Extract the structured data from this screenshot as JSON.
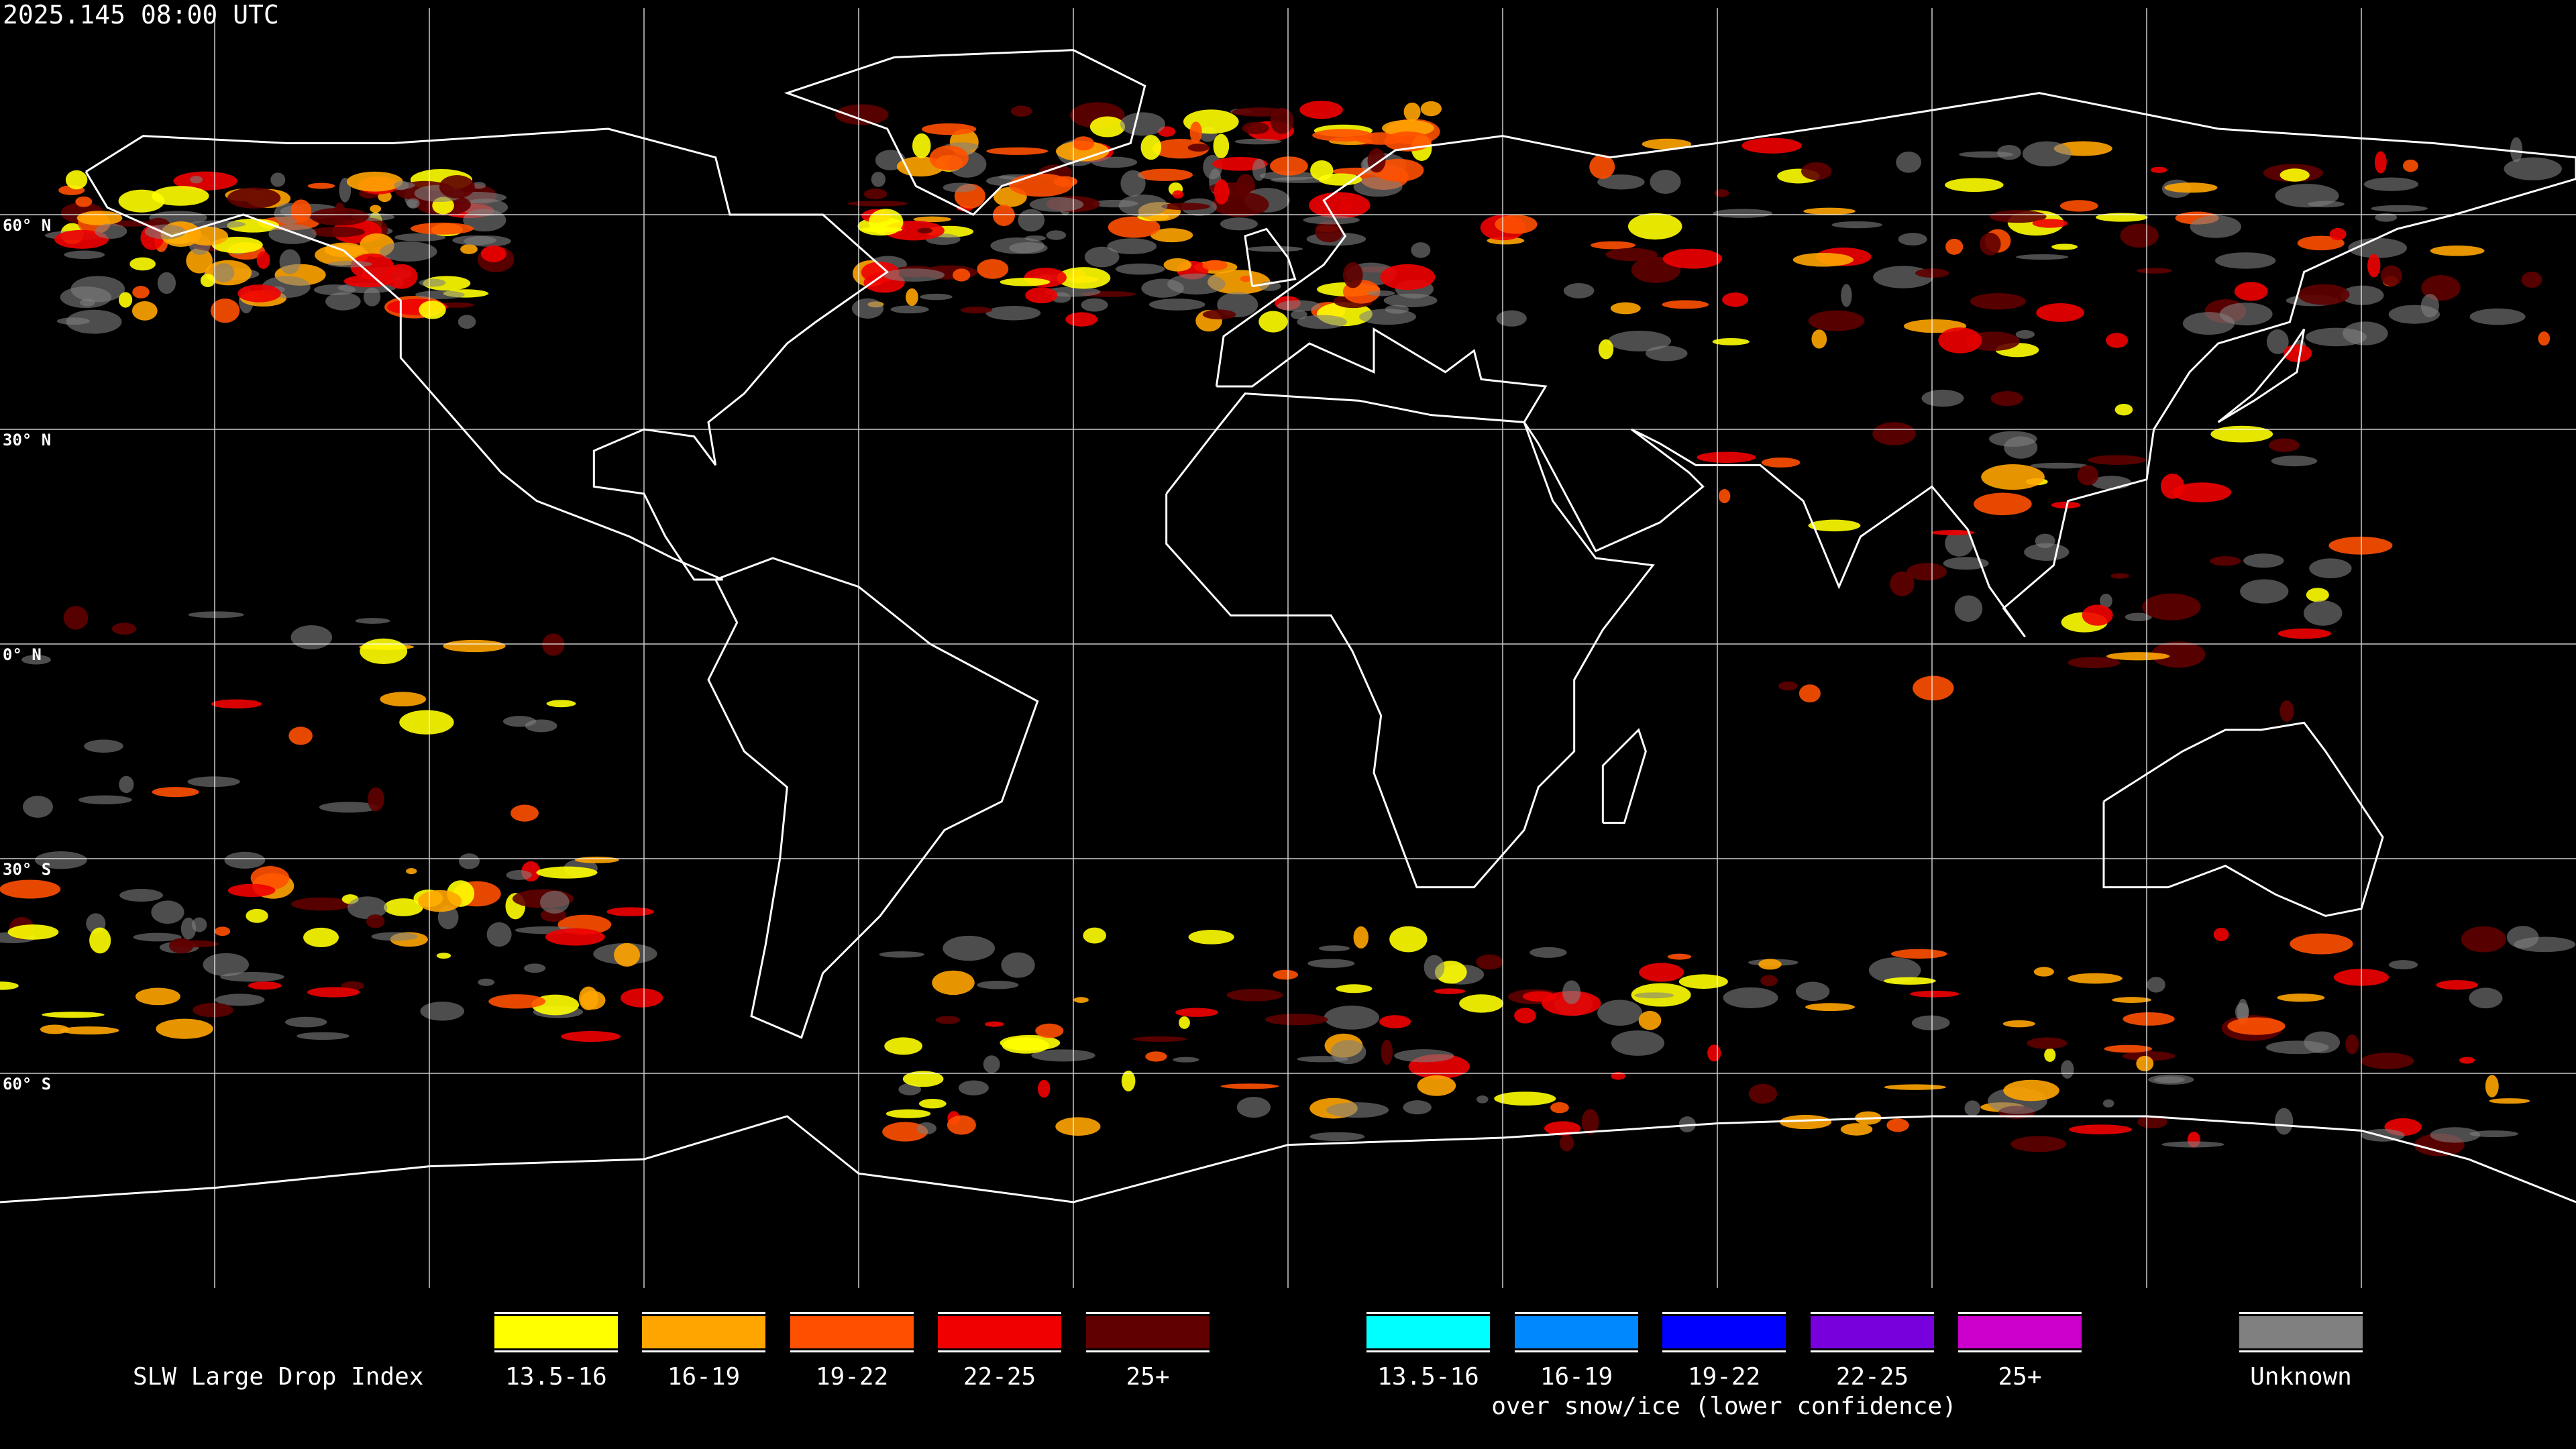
{
  "header": {
    "timestamp": "2025.145 08:00 UTC"
  },
  "map": {
    "projection": "equirectangular",
    "grid_spacing_deg": 30,
    "lat_labels": [
      "60° N",
      "30° N",
      "0° N",
      "30° S",
      "60° S"
    ],
    "colors": {
      "coastline": "#ffffff",
      "grid": "#ffffff",
      "background": "#000000"
    }
  },
  "legend": {
    "title": "SLW Large Drop Index",
    "main": [
      {
        "label": "13.5-16",
        "color": "#ffff00"
      },
      {
        "label": "16-19",
        "color": "#ffa500"
      },
      {
        "label": "19-22",
        "color": "#ff5000"
      },
      {
        "label": "22-25",
        "color": "#f00000"
      },
      {
        "label": "25+",
        "color": "#600000"
      }
    ],
    "snow": [
      {
        "label": "13.5-16",
        "color": "#00ffff"
      },
      {
        "label": "16-19",
        "color": "#0088ff"
      },
      {
        "label": "19-22",
        "color": "#0000ff"
      },
      {
        "label": "22-25",
        "color": "#7700dd"
      },
      {
        "label": "25+",
        "color": "#cc00cc"
      }
    ],
    "snow_caption": "over snow/ice (lower confidence)",
    "unknown": {
      "label": "Unknown",
      "color": "#808080"
    }
  }
}
